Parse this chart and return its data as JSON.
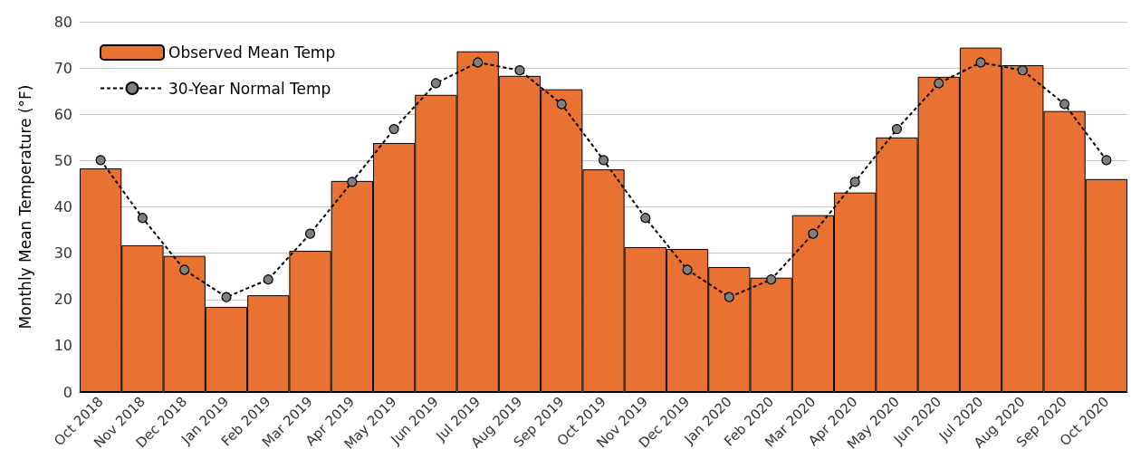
{
  "chart_data": {
    "type": "bar",
    "ylabel": "Monthly Mean Temperature (°F)",
    "categories": [
      "Oct 2018",
      "Nov 2018",
      "Dec 2018",
      "Jan 2019",
      "Feb 2019",
      "Mar 2019",
      "Apr 2019",
      "May 2019",
      "Jun 2019",
      "Jul 2019",
      "Aug 2019",
      "Sep 2019",
      "Oct 2019",
      "Nov 2019",
      "Dec 2019",
      "Jan 2020",
      "Feb 2020",
      "Mar 2020",
      "Apr 2020",
      "May 2020",
      "Jun 2020",
      "Jul 2020",
      "Aug 2020",
      "Sep 2020",
      "Oct 2020"
    ],
    "series": [
      {
        "name": "Observed Mean Temp",
        "color": "#e97132",
        "values": [
          48.3,
          31.7,
          29.4,
          18.4,
          20.9,
          30.5,
          45.6,
          53.8,
          64.2,
          73.6,
          68.3,
          65.4,
          48.1,
          31.3,
          30.9,
          27.0,
          24.7,
          38.2,
          43.1,
          55.0,
          68.1,
          74.4,
          70.6,
          60.7,
          46.0
        ]
      },
      {
        "name": "30-Year Normal Temp",
        "type": "line",
        "color": "#000000",
        "marker": "circle",
        "line_style": "dashed",
        "values": [
          50.1,
          37.6,
          26.4,
          20.5,
          24.3,
          34.2,
          45.4,
          56.8,
          66.7,
          71.2,
          69.5,
          62.2,
          50.1,
          37.6,
          26.4,
          20.5,
          24.3,
          34.2,
          45.4,
          56.8,
          66.7,
          71.2,
          69.5,
          62.2,
          50.1
        ]
      }
    ],
    "ylim": [
      0,
      80
    ],
    "yticks": [
      0,
      10,
      20,
      30,
      40,
      50,
      60,
      70,
      80
    ],
    "grid": "y",
    "legend": "top left"
  }
}
